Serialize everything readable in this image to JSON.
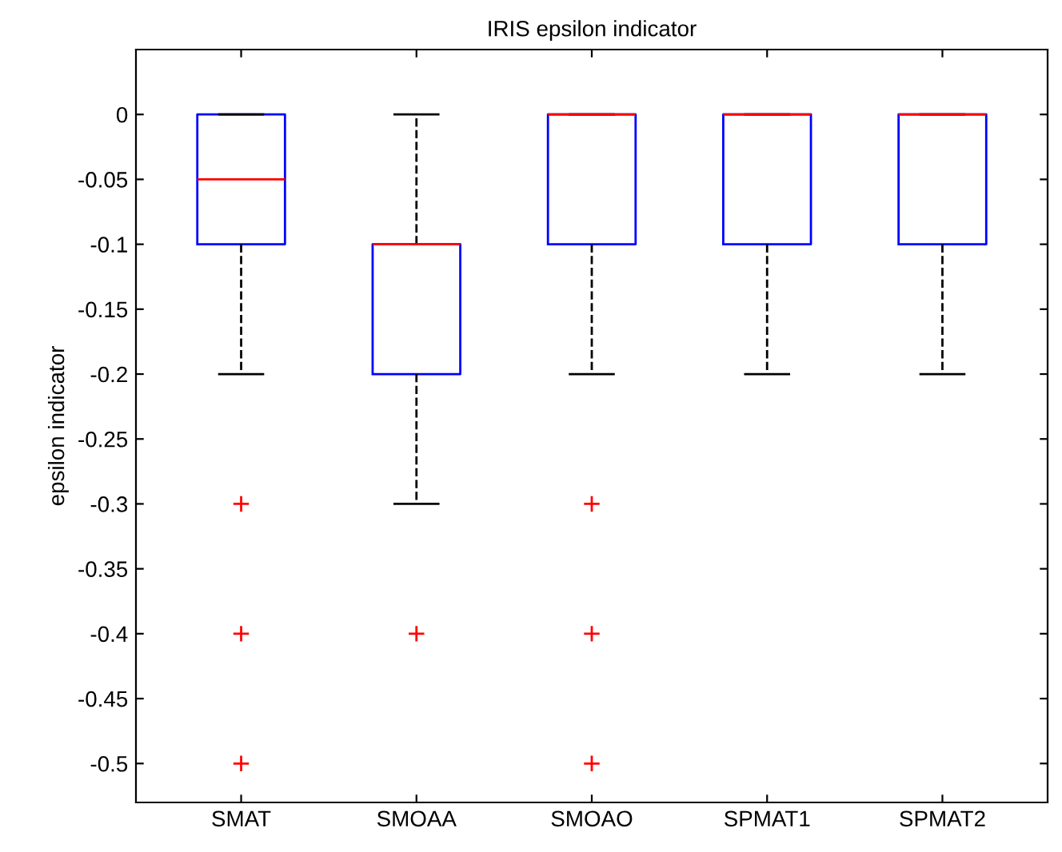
{
  "chart_data": {
    "type": "box",
    "title": "IRIS epsilon indicator",
    "ylabel": "epsilon indicator",
    "categories": [
      "SMAT",
      "SMOAA",
      "SMOAO",
      "SPMAT1",
      "SPMAT2"
    ],
    "series": [
      {
        "color": "#0000ff",
        "boxes": [
          {
            "low": -0.2,
            "q1": -0.1,
            "median": -0.05,
            "q3": 0,
            "high": 0,
            "outliers": [
              -0.3,
              -0.4,
              -0.5
            ]
          },
          {
            "low": -0.3,
            "q1": -0.2,
            "median": -0.1,
            "q3": -0.1,
            "high": 0,
            "outliers": [
              -0.4
            ]
          },
          {
            "low": -0.2,
            "q1": -0.1,
            "median": 0,
            "q3": 0,
            "high": 0,
            "outliers": [
              -0.3,
              -0.4,
              -0.5
            ]
          },
          {
            "low": -0.2,
            "q1": -0.1,
            "median": 0,
            "q3": 0,
            "high": 0
          },
          {
            "low": -0.2,
            "q1": -0.1,
            "median": 0,
            "q3": 0,
            "high": 0
          }
        ]
      }
    ],
    "ylim": [
      -0.53,
      0.05
    ],
    "yticks": [
      0,
      -0.05,
      -0.1,
      -0.15,
      -0.2,
      -0.25,
      -0.3,
      -0.35,
      -0.4,
      -0.45,
      -0.5
    ],
    "grid": false,
    "legend": false
  }
}
